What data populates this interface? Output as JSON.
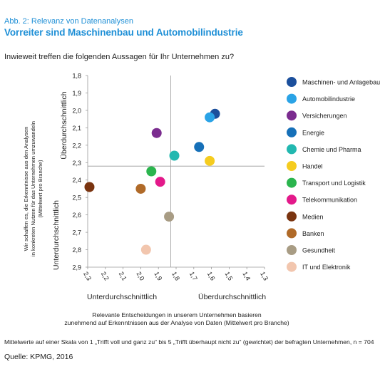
{
  "header": {
    "kicker": "Abb. 2: Relevanz von Datenanalysen",
    "title": "Vorreiter sind Maschinenbau und Automobilindustrie",
    "question": "Inwieweit treffen die folgenden Aussagen für Ihr Unternehmen zu?"
  },
  "footer": {
    "note": "Mittelwerte auf einer Skala von 1 „Trifft voll und ganz zu“ bis 5 „Trifft überhaupt nicht zu“ (gewichtet) der befragten Unternehmen, n = 704",
    "source": "Quelle: KPMG, 2016"
  },
  "chart_data": {
    "type": "scatter",
    "xlabel": [
      "Relevante Entscheidungen in unserem Unternehmen basieren",
      "zunehmend auf Erkenntnissen aus der Analyse von Daten (Mittelwert pro Branche)"
    ],
    "ylabel": [
      "Wir schaffen es, die Erkenntnisse aus den Analysen",
      "in konkreten Nutzen für das Unternehmen umzuwandeln",
      "(Mittelwert pro Branche)"
    ],
    "xlim": [
      2.3,
      1.3
    ],
    "ylim": [
      1.8,
      2.9
    ],
    "x_reversed": true,
    "y_reversed": true,
    "x_ticks": [
      "2,3",
      "2,2",
      "2,1",
      "2,0",
      "1,9",
      "1,8",
      "1,7",
      "1,6",
      "1,5",
      "1,4",
      "1,3"
    ],
    "y_ticks": [
      "1,8",
      "1,9",
      "2,0",
      "2,1",
      "2,2",
      "2,3",
      "2,4",
      "2,5",
      "2,6",
      "2,7",
      "2,8",
      "2,9"
    ],
    "x_ticks_values": [
      2.3,
      2.2,
      2.1,
      2.0,
      1.9,
      1.8,
      1.7,
      1.6,
      1.5,
      1.4,
      1.3
    ],
    "y_ticks_values": [
      1.8,
      1.9,
      2.0,
      2.1,
      2.2,
      2.3,
      2.4,
      2.5,
      2.6,
      2.7,
      2.8,
      2.9
    ],
    "reference_lines": {
      "x": 1.83,
      "y": 2.32
    },
    "quadrant_labels": {
      "y_high": "Überdurchschnittlich",
      "y_low": "Unterdurchschnittlich",
      "x_low": "Unterdurchschnittlich",
      "x_high": "Überdurchschnittlich"
    },
    "legend_position": "right",
    "grid": false,
    "series": [
      {
        "name": "Maschinen- und Anlagebau",
        "color": "#1b4f9c",
        "x": 1.58,
        "y": 2.02
      },
      {
        "name": "Automobilindustrie",
        "color": "#2aa3e6",
        "x": 1.61,
        "y": 2.04
      },
      {
        "name": "Versicherungen",
        "color": "#7b2c8f",
        "x": 1.91,
        "y": 2.13
      },
      {
        "name": "Energie",
        "color": "#1670b8",
        "x": 1.67,
        "y": 2.21
      },
      {
        "name": "Chemie und Pharma",
        "color": "#22b8b0",
        "x": 1.81,
        "y": 2.26
      },
      {
        "name": "Handel",
        "color": "#f5cc1f",
        "x": 1.61,
        "y": 2.29
      },
      {
        "name": "Transport und Logistik",
        "color": "#2bb54e",
        "x": 1.94,
        "y": 2.35
      },
      {
        "name": "Telekommunikation",
        "color": "#e3198a",
        "x": 1.89,
        "y": 2.41
      },
      {
        "name": "Medien",
        "color": "#7a3410",
        "x": 2.29,
        "y": 2.44
      },
      {
        "name": "Banken",
        "color": "#b06a28",
        "x": 2.0,
        "y": 2.45
      },
      {
        "name": "Gesundheit",
        "color": "#a89c84",
        "x": 1.84,
        "y": 2.61
      },
      {
        "name": "IT und Elektronik",
        "color": "#f2c6ae",
        "x": 1.97,
        "y": 2.8
      }
    ]
  }
}
